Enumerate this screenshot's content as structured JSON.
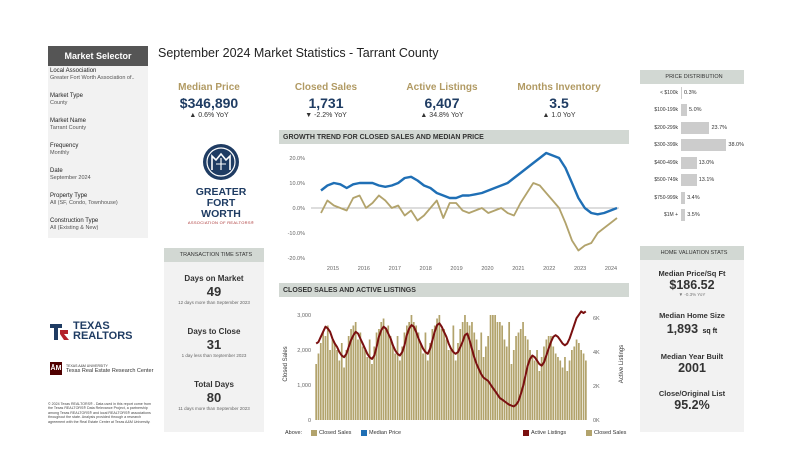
{
  "title": "September 2024 Market Statistics - Tarrant County",
  "selector": {
    "header": "Market Selector",
    "items": [
      {
        "key": "Local Association",
        "value": "Greater Fort Worth Association of.."
      },
      {
        "key": "Market Type",
        "value": "County"
      },
      {
        "key": "Market Name",
        "value": "Tarrant County"
      },
      {
        "key": "Frequency",
        "value": "Monthly"
      },
      {
        "key": "Date",
        "value": "September 2024"
      },
      {
        "key": "Property Type",
        "value": "All (SF, Condo, Townhouse)"
      },
      {
        "key": "Construction Type",
        "value": "All (Existing & New)"
      }
    ]
  },
  "kpis": [
    {
      "label": "Median Price",
      "value": "$346,890",
      "yoy": "▲ 0.6% YoY"
    },
    {
      "label": "Closed Sales",
      "value": "1,731",
      "yoy": "▼ -2.2% YoY"
    },
    {
      "label": "Active Listings",
      "value": "6,407",
      "yoy": "▲ 34.8% YoY"
    },
    {
      "label": "Months Inventory",
      "value": "3.5",
      "yoy": "▲ 1.0 YoY"
    }
  ],
  "logo": {
    "line1": "GREATER",
    "line2": "FORT WORTH",
    "line3": "ASSOCIATION OF REALTORS®"
  },
  "transaction": {
    "header": "TRANSACTION TIME STATS",
    "items": [
      {
        "label": "Days on Market",
        "value": "49",
        "note": "12 days more than September 2023"
      },
      {
        "label": "Days to Close",
        "value": "31",
        "note": "1 day less than September 2023"
      },
      {
        "label": "Total Days",
        "value": "80",
        "note": "11 days more than September 2023"
      }
    ]
  },
  "price_dist": {
    "header": "PRICE DISTRIBUTION",
    "rows": [
      {
        "label": "< $100k",
        "pct": 0.3,
        "text": "0.3%"
      },
      {
        "label": "$100-199k",
        "pct": 5.0,
        "text": "5.0%"
      },
      {
        "label": "$200-299k",
        "pct": 23.7,
        "text": "23.7%"
      },
      {
        "label": "$300-399k",
        "pct": 38.0,
        "text": "38.0%"
      },
      {
        "label": "$400-499k",
        "pct": 13.0,
        "text": "13.0%"
      },
      {
        "label": "$500-749k",
        "pct": 13.1,
        "text": "13.1%"
      },
      {
        "label": "$750-999k",
        "pct": 3.4,
        "text": "3.4%"
      },
      {
        "label": "$1M +",
        "pct": 3.5,
        "text": "3.5%"
      }
    ]
  },
  "home_val": {
    "header": "HOME VALUATION STATS",
    "ppsf_label": "Median Price/Sq Ft",
    "ppsf_value": "$186.52",
    "ppsf_sub": "▼ -0.3% YoY",
    "size_label": "Median Home Size",
    "size_value": "1,893",
    "size_unit": "sq ft",
    "year_label": "Median Year Built",
    "year_value": "2001",
    "close_label": "Close/Original List",
    "close_value": "95.2%"
  },
  "texas_realtors": {
    "line1": "TEXAS",
    "line2": "REALTORS"
  },
  "am": {
    "small": "TEXAS A&M UNIVERSITY",
    "name": "Texas Real Estate Research Center"
  },
  "footnote": "© 2024 Texas REALTORS® - Data used in this report come from the Texas REALTORS® Data Relevance Project, a partnership among Texas REALTORS® and local REALTORS® associations throughout the state. Analysis provided through a research agreement with the Real Estate Center at Texas A&M University.",
  "growth": {
    "header": "GROWTH TREND FOR CLOSED SALES AND MEDIAN PRICE",
    "colors": {
      "sales": "#b2a36c",
      "price": "#1f6fb5"
    }
  },
  "cs": {
    "header": "CLOSED SALES AND ACTIVE LISTINGS",
    "ylabel_left": "Closed Sales",
    "ylabel_right": "Active Listings",
    "colors": {
      "bars": "#b2a36c",
      "line": "#7a1010"
    }
  },
  "legend": {
    "above": "Above:",
    "closed_sales": "Closed Sales",
    "median_price": "Median Price",
    "active_listings": "Active Listings",
    "closed_sales2": "Closed Sales"
  },
  "chart_data": [
    {
      "type": "line",
      "title": "GROWTH TREND FOR CLOSED SALES AND MEDIAN PRICE",
      "x_ticks": [
        "2015",
        "2016",
        "2017",
        "2018",
        "2019",
        "2020",
        "2021",
        "2022",
        "2023",
        "2024"
      ],
      "y_ticks": [
        "20.0%",
        "10.0%",
        "0.0%",
        "-10.0%",
        "-20.0%"
      ],
      "ylim": [
        -20,
        20
      ],
      "series": [
        {
          "name": "Median Price",
          "values": [
            7,
            9,
            10,
            9.5,
            8,
            9.5,
            10,
            10,
            10,
            9,
            8.5,
            9,
            10,
            12,
            12.5,
            11,
            9,
            8,
            6,
            5,
            4,
            4,
            5,
            5,
            5.5,
            6,
            7,
            8,
            9,
            10,
            12,
            14,
            16,
            18,
            20,
            22,
            21,
            20,
            16,
            10,
            4,
            0,
            -2,
            -2.5,
            -2,
            -1,
            0
          ]
        },
        {
          "name": "Closed Sales",
          "values": [
            -2,
            3,
            1,
            0,
            -1,
            4,
            5,
            0,
            2,
            5,
            3,
            0,
            1,
            -3,
            -1,
            -5,
            -3,
            0,
            3,
            -4,
            2,
            2,
            -1,
            -2,
            -1,
            0,
            -2,
            -1,
            0,
            -2,
            -3,
            2,
            6,
            10,
            9,
            6,
            3,
            0,
            -6,
            -13,
            -17,
            -15,
            -14,
            -10,
            -8,
            -6,
            -4
          ]
        }
      ]
    },
    {
      "type": "bar",
      "title": "CLOSED SALES AND ACTIVE LISTINGS",
      "y_left_ticks": [
        "3,000",
        "2,000",
        "1,000",
        "0"
      ],
      "y_right_ticks": [
        "6K",
        "4K",
        "2K",
        "0K"
      ],
      "ylim_left": [
        0,
        3200
      ],
      "ylim_right": [
        0,
        6600
      ],
      "series": [
        {
          "name": "Closed Sales",
          "values": [
            1600,
            1900,
            2200,
            2500,
            2400,
            2700,
            2000,
            2300,
            2200,
            2000,
            1700,
            2200,
            1500,
            2000,
            2400,
            2600,
            2700,
            2800,
            2300,
            2500,
            2100,
            2000,
            1800,
            2300,
            1600,
            2100,
            2500,
            2600,
            2800,
            2900,
            2600,
            2700,
            2400,
            2100,
            1900,
            2400,
            1700,
            2100,
            2500,
            2700,
            2800,
            3000,
            2800,
            2700,
            2500,
            2200,
            1900,
            2500,
            1700,
            2200,
            2600,
            2700,
            2900,
            3000,
            2600,
            2600,
            2300,
            2000,
            2000,
            2700,
            1700,
            2200,
            2600,
            2800,
            3000,
            2800,
            2700,
            2800,
            2500,
            2300,
            2000,
            2500,
            1800,
            2100,
            2400,
            3000,
            3000,
            3000,
            2800,
            2800,
            2700,
            2300,
            2100,
            2800,
            1600,
            2000,
            2400,
            2500,
            2600,
            2800,
            2400,
            2300,
            2000,
            1800,
            1700,
            2000,
            1400,
            1800,
            2100,
            2300,
            2400,
            2400,
            2100,
            1900,
            1800,
            1700,
            1500,
            1800,
            1400,
            1700,
            2000,
            2100,
            2300,
            2200,
            2000,
            1900,
            1700
          ]
        },
        {
          "name": "Active Listings",
          "values": [
            4500,
            4600,
            4900,
            5200,
            5500,
            5400,
            5200,
            4800,
            4500,
            4300,
            4000,
            3800,
            3700,
            3900,
            4300,
            4700,
            5000,
            5200,
            5100,
            4800,
            4500,
            4200,
            3900,
            3700,
            3600,
            3800,
            4300,
            4900,
            5300,
            5500,
            5400,
            5100,
            4800,
            4400,
            4100,
            3900,
            3800,
            4000,
            4400,
            5000,
            5400,
            5600,
            5500,
            5200,
            4800,
            4500,
            4200,
            4000,
            3900,
            4200,
            4700,
            5200,
            5600,
            5700,
            5500,
            5200,
            4900,
            4500,
            4200,
            4000,
            3900,
            4000,
            4300,
            4600,
            5000,
            5100,
            4700,
            4200,
            3700,
            3300,
            3000,
            2700,
            2500,
            2400,
            2300,
            2100,
            1900,
            1700,
            1500,
            1300,
            1200,
            1100,
            1000,
            900,
            850,
            800,
            900,
            1100,
            1500,
            2000,
            2600,
            3200,
            3600,
            3800,
            3700,
            3500,
            3300,
            3200,
            3400,
            3800,
            4200,
            4600,
            4900,
            5000,
            4900,
            4700,
            4500,
            4400,
            4500,
            4800,
            5200,
            5600,
            6000,
            6200,
            6400,
            6300,
            6400
          ]
        }
      ]
    }
  ]
}
